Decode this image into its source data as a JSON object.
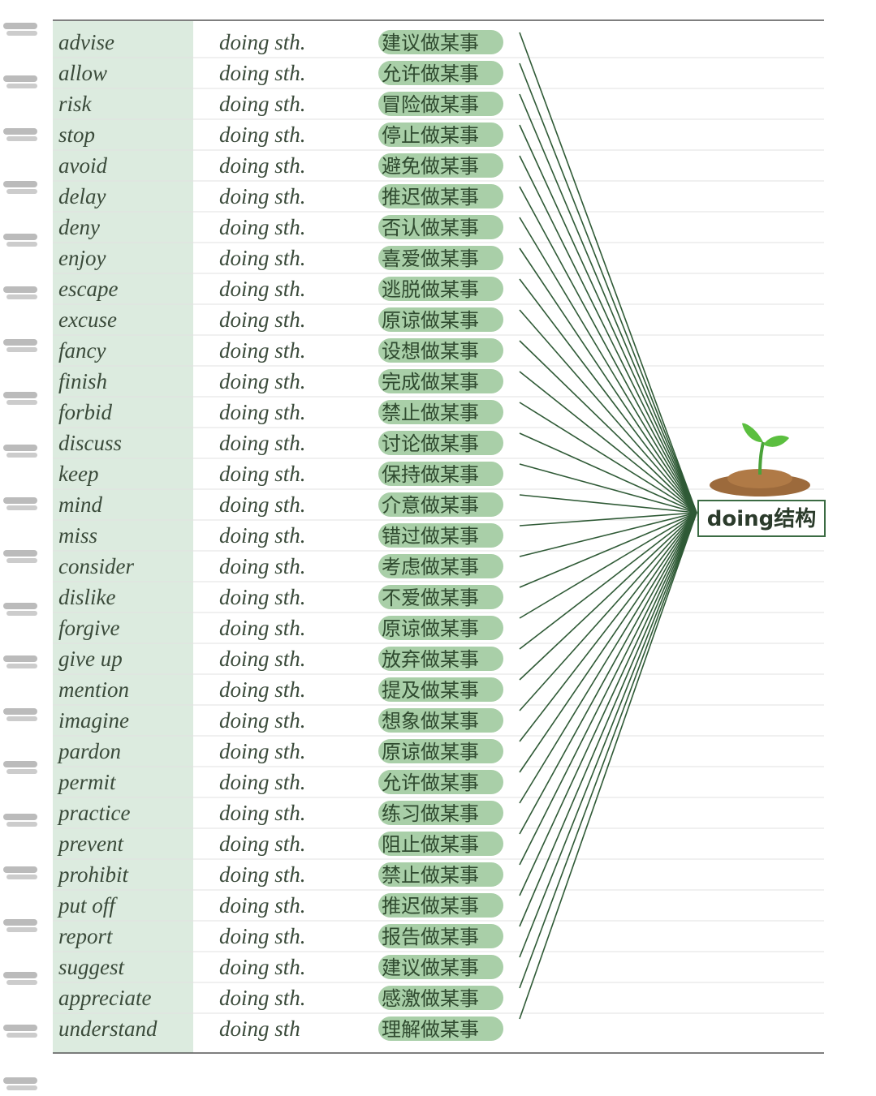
{
  "rows": [
    [
      "advise",
      "doing sth.",
      "建议做某事"
    ],
    [
      "allow",
      "doing sth.",
      "允许做某事"
    ],
    [
      "risk",
      "doing sth.",
      "冒险做某事"
    ],
    [
      "stop",
      "doing sth.",
      "停止做某事"
    ],
    [
      "avoid",
      "doing sth.",
      "避免做某事"
    ],
    [
      "delay",
      "doing sth.",
      "推迟做某事"
    ],
    [
      "deny",
      "doing sth.",
      "否认做某事"
    ],
    [
      "enjoy",
      "doing sth.",
      "喜爱做某事"
    ],
    [
      "escape",
      "doing sth.",
      "逃脱做某事"
    ],
    [
      "excuse",
      "doing sth.",
      "原谅做某事"
    ],
    [
      "fancy",
      "doing sth.",
      "设想做某事"
    ],
    [
      "finish",
      "doing sth.",
      "完成做某事"
    ],
    [
      "forbid",
      "doing sth.",
      "禁止做某事"
    ],
    [
      "discuss",
      "doing sth.",
      "讨论做某事"
    ],
    [
      "keep",
      "doing sth.",
      "保持做某事"
    ],
    [
      "mind",
      "doing sth.",
      "介意做某事"
    ],
    [
      "miss",
      "doing sth.",
      "错过做某事"
    ],
    [
      "consider",
      "doing sth.",
      "考虑做某事"
    ],
    [
      "dislike",
      "doing sth.",
      "不爱做某事"
    ],
    [
      "forgive",
      "doing sth.",
      "原谅做某事"
    ],
    [
      "give up",
      "doing sth.",
      "放弃做某事"
    ],
    [
      "mention",
      "doing sth.",
      "提及做某事"
    ],
    [
      "imagine",
      "doing sth.",
      "想象做某事"
    ],
    [
      "pardon",
      "doing sth.",
      "原谅做某事"
    ],
    [
      "permit",
      "doing sth.",
      "允许做某事"
    ],
    [
      "practice",
      "doing sth.",
      "练习做某事"
    ],
    [
      "prevent",
      "doing sth.",
      "阻止做某事"
    ],
    [
      "prohibit",
      "doing sth.",
      "禁止做某事"
    ],
    [
      "put off",
      "doing sth.",
      "推迟做某事"
    ],
    [
      "report",
      "doing sth.",
      "报告做某事"
    ],
    [
      "suggest",
      "doing sth.",
      "建议做某事"
    ],
    [
      "appreciate",
      "doing sth.",
      "感激做某事"
    ],
    [
      "understand",
      "doing sth",
      "理解做某事"
    ]
  ],
  "hub": {
    "label": "doing结构"
  }
}
